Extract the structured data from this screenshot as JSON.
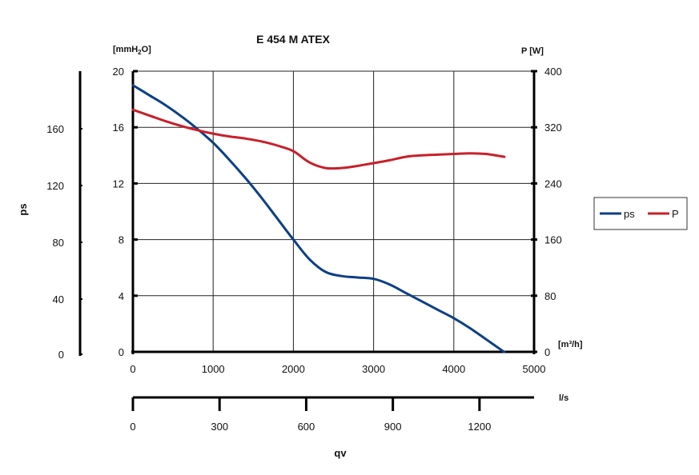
{
  "chart_data": {
    "type": "line",
    "title": "E 454 M ATEX",
    "x_axis": {
      "label": "qv",
      "unit_top": "[m³/h]",
      "range": [
        0,
        5000
      ],
      "ticks": [
        0,
        1000,
        2000,
        3000,
        4000,
        5000
      ],
      "tick_labels": [
        "0",
        "1000",
        "2000",
        "3000",
        "4000",
        "5000"
      ]
    },
    "x_axis_secondary": {
      "unit": "l/s",
      "range": [
        0,
        1388.9
      ],
      "ticks": [
        0,
        300,
        600,
        900,
        1200
      ],
      "tick_labels": [
        "0",
        "300",
        "600",
        "900",
        "1200"
      ]
    },
    "y_left_mm": {
      "unit_base": "[mmH",
      "unit_sub": "2",
      "unit_end": "O]",
      "range": [
        0,
        20
      ],
      "ticks": [
        0,
        4,
        8,
        12,
        16,
        20
      ],
      "tick_labels": [
        "0",
        "4",
        "8",
        "12",
        "16",
        "20"
      ]
    },
    "y_left_pa": {
      "label": "ps",
      "ticks": [
        0,
        40,
        80,
        120,
        160
      ],
      "tick_labels": [
        "0",
        "40",
        "80",
        "120",
        "160"
      ]
    },
    "y_right": {
      "unit": "P [W]",
      "range": [
        0,
        400
      ],
      "ticks": [
        0,
        80,
        160,
        240,
        320,
        400
      ],
      "tick_labels": [
        "0",
        "80",
        "160",
        "240",
        "320",
        "400"
      ]
    },
    "grid": true,
    "legend_position": "right",
    "series": [
      {
        "name": "ps",
        "axis": "left",
        "color": "#0d3f86",
        "x": [
          0,
          200,
          400,
          600,
          800,
          1000,
          1200,
          1400,
          1600,
          1800,
          2000,
          2200,
          2400,
          2600,
          2800,
          3000,
          3200,
          3400,
          3600,
          3800,
          4000,
          4200,
          4400,
          4600,
          4630
        ],
        "y": [
          19.0,
          18.3,
          17.6,
          16.8,
          15.9,
          14.9,
          13.7,
          12.4,
          11.0,
          9.5,
          8.0,
          6.6,
          5.7,
          5.4,
          5.3,
          5.2,
          4.8,
          4.2,
          3.6,
          3.0,
          2.4,
          1.7,
          0.9,
          0.1,
          0.0
        ]
      },
      {
        "name": "P",
        "axis": "right",
        "color": "#c8202a",
        "x": [
          0,
          200,
          400,
          600,
          800,
          1000,
          1200,
          1400,
          1600,
          1800,
          2000,
          2200,
          2400,
          2600,
          2800,
          3000,
          3200,
          3400,
          3600,
          3800,
          4000,
          4200,
          4400,
          4630
        ],
        "y": [
          345,
          337,
          329,
          322,
          316,
          311,
          307,
          304,
          300,
          294,
          286,
          270,
          262,
          262,
          265,
          269,
          273,
          278,
          280,
          281,
          282,
          283,
          282,
          278
        ]
      }
    ]
  }
}
